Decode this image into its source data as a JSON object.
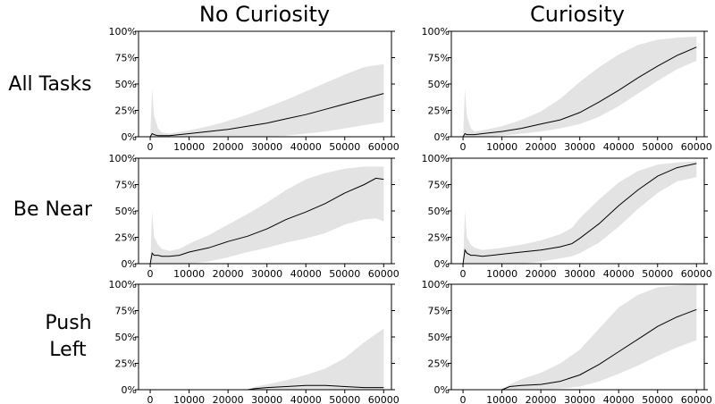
{
  "figure": {
    "column_titles": [
      "No Curiosity",
      "Curiosity"
    ],
    "row_labels": [
      [
        "All Tasks"
      ],
      [
        "Be Near"
      ],
      [
        "Push",
        "Left"
      ]
    ]
  },
  "chart_data": [
    {
      "type": "line",
      "row": 0,
      "col": 0,
      "task": "All Tasks",
      "condition": "No Curiosity",
      "xlim": [
        -3000,
        62000
      ],
      "ylim": [
        0,
        100
      ],
      "xticks": [
        0,
        10000,
        20000,
        30000,
        40000,
        50000,
        60000
      ],
      "yticks": [
        0,
        25,
        50,
        75,
        100
      ],
      "xtick_labels": [
        "0",
        "10000",
        "20000",
        "30000",
        "40000",
        "50000",
        "60000"
      ],
      "ytick_labels": [
        "0%",
        "25%",
        "50%",
        "75%",
        "100%"
      ],
      "x": [
        0,
        500,
        1000,
        2000,
        3000,
        5000,
        10000,
        15000,
        20000,
        25000,
        30000,
        35000,
        40000,
        45000,
        50000,
        55000,
        60000
      ],
      "mean": [
        0,
        3,
        2,
        1,
        1,
        1,
        3,
        5,
        7,
        10,
        13,
        17,
        21,
        26,
        31,
        36,
        41
      ],
      "lower": [
        0,
        0,
        0,
        0,
        0,
        0,
        0,
        0,
        0,
        0,
        0,
        1,
        3,
        5,
        8,
        11,
        14
      ],
      "upper": [
        0,
        46,
        20,
        8,
        4,
        3,
        6,
        10,
        15,
        21,
        28,
        35,
        43,
        51,
        59,
        66,
        69
      ]
    },
    {
      "type": "line",
      "row": 0,
      "col": 1,
      "task": "All Tasks",
      "condition": "Curiosity",
      "xlim": [
        -3000,
        62000
      ],
      "ylim": [
        0,
        100
      ],
      "xticks": [
        0,
        10000,
        20000,
        30000,
        40000,
        50000,
        60000
      ],
      "yticks": [
        0,
        25,
        50,
        75,
        100
      ],
      "xtick_labels": [
        "0",
        "10000",
        "20000",
        "30000",
        "40000",
        "50000",
        "60000"
      ],
      "ytick_labels": [
        "0%",
        "25%",
        "50%",
        "75%",
        "100%"
      ],
      "x": [
        0,
        500,
        1000,
        2000,
        3000,
        5000,
        10000,
        15000,
        20000,
        25000,
        30000,
        35000,
        40000,
        45000,
        50000,
        55000,
        60000
      ],
      "mean": [
        0,
        3,
        2,
        2,
        2,
        3,
        5,
        8,
        12,
        16,
        23,
        33,
        44,
        56,
        67,
        77,
        85
      ],
      "lower": [
        0,
        0,
        0,
        0,
        0,
        0,
        1,
        3,
        5,
        8,
        12,
        19,
        29,
        41,
        53,
        64,
        72
      ],
      "upper": [
        0,
        45,
        20,
        8,
        5,
        6,
        10,
        16,
        24,
        36,
        52,
        66,
        78,
        87,
        92,
        94,
        95
      ]
    },
    {
      "type": "line",
      "row": 1,
      "col": 0,
      "task": "Be Near",
      "condition": "No Curiosity",
      "xlim": [
        -3000,
        62000
      ],
      "ylim": [
        0,
        100
      ],
      "xticks": [
        0,
        10000,
        20000,
        30000,
        40000,
        50000,
        60000
      ],
      "yticks": [
        0,
        25,
        50,
        75,
        100
      ],
      "xtick_labels": [
        "0",
        "10000",
        "20000",
        "30000",
        "40000",
        "50000",
        "60000"
      ],
      "ytick_labels": [
        "0%",
        "25%",
        "50%",
        "75%",
        "100%"
      ],
      "x": [
        0,
        500,
        1000,
        2000,
        3000,
        5000,
        7500,
        10000,
        15000,
        20000,
        25000,
        30000,
        35000,
        40000,
        45000,
        50000,
        55000,
        58000,
        60000
      ],
      "mean": [
        0,
        10,
        8,
        8,
        7,
        7,
        8,
        11,
        15,
        21,
        26,
        33,
        42,
        49,
        57,
        67,
        75,
        81,
        80
      ],
      "lower": [
        0,
        0,
        0,
        0,
        0,
        0,
        0,
        0,
        2,
        6,
        11,
        15,
        20,
        24,
        29,
        37,
        42,
        43,
        40
      ],
      "upper": [
        0,
        50,
        25,
        18,
        14,
        12,
        14,
        19,
        27,
        37,
        47,
        58,
        70,
        80,
        86,
        90,
        92,
        92,
        92
      ]
    },
    {
      "type": "line",
      "row": 1,
      "col": 1,
      "task": "Be Near",
      "condition": "Curiosity",
      "xlim": [
        -3000,
        62000
      ],
      "ylim": [
        0,
        100
      ],
      "xticks": [
        0,
        10000,
        20000,
        30000,
        40000,
        50000,
        60000
      ],
      "yticks": [
        0,
        25,
        50,
        75,
        100
      ],
      "xtick_labels": [
        "0",
        "10000",
        "20000",
        "30000",
        "40000",
        "50000",
        "60000"
      ],
      "ytick_labels": [
        "0%",
        "25%",
        "50%",
        "75%",
        "100%"
      ],
      "x": [
        0,
        500,
        1000,
        2000,
        3000,
        5000,
        7500,
        10000,
        15000,
        20000,
        25000,
        28000,
        30000,
        35000,
        40000,
        45000,
        50000,
        55000,
        60000
      ],
      "mean": [
        0,
        13,
        10,
        8,
        8,
        7,
        8,
        9,
        11,
        13,
        16,
        19,
        24,
        38,
        55,
        70,
        83,
        91,
        95
      ],
      "lower": [
        0,
        0,
        0,
        0,
        0,
        0,
        0,
        0,
        0,
        2,
        5,
        7,
        10,
        20,
        35,
        52,
        67,
        78,
        82
      ],
      "upper": [
        0,
        50,
        25,
        18,
        15,
        13,
        14,
        15,
        18,
        22,
        28,
        34,
        43,
        61,
        77,
        88,
        94,
        96,
        97
      ]
    },
    {
      "type": "line",
      "row": 2,
      "col": 0,
      "task": "Push Left",
      "condition": "No Curiosity",
      "xlim": [
        -3000,
        62000
      ],
      "ylim": [
        0,
        100
      ],
      "xticks": [
        0,
        10000,
        20000,
        30000,
        40000,
        50000,
        60000
      ],
      "yticks": [
        0,
        25,
        50,
        75,
        100
      ],
      "xtick_labels": [
        "0",
        "10000",
        "20000",
        "30000",
        "40000",
        "50000",
        "60000"
      ],
      "ytick_labels": [
        "0%",
        "25%",
        "50%",
        "75%",
        "100%"
      ],
      "x": [
        25000,
        27000,
        30000,
        35000,
        40000,
        45000,
        50000,
        55000,
        60000
      ],
      "mean": [
        0,
        1,
        2,
        3,
        4,
        4,
        3,
        2,
        2
      ],
      "lower": [
        0,
        0,
        0,
        0,
        0,
        0,
        0,
        0,
        0
      ],
      "upper": [
        0,
        3,
        5,
        9,
        14,
        20,
        30,
        45,
        58
      ]
    },
    {
      "type": "line",
      "row": 2,
      "col": 1,
      "task": "Push Left",
      "condition": "Curiosity",
      "xlim": [
        -3000,
        62000
      ],
      "ylim": [
        0,
        100
      ],
      "xticks": [
        0,
        10000,
        20000,
        30000,
        40000,
        50000,
        60000
      ],
      "yticks": [
        0,
        25,
        50,
        75,
        100
      ],
      "xtick_labels": [
        "0",
        "10000",
        "20000",
        "30000",
        "40000",
        "50000",
        "60000"
      ],
      "ytick_labels": [
        "0%",
        "25%",
        "50%",
        "75%",
        "100%"
      ],
      "x": [
        10000,
        12000,
        15000,
        20000,
        25000,
        30000,
        35000,
        40000,
        45000,
        50000,
        55000,
        60000
      ],
      "mean": [
        0,
        3,
        4,
        5,
        8,
        14,
        24,
        36,
        48,
        60,
        69,
        76
      ],
      "lower": [
        0,
        0,
        0,
        0,
        1,
        3,
        8,
        15,
        23,
        32,
        40,
        47
      ],
      "upper": [
        0,
        5,
        10,
        16,
        25,
        38,
        58,
        78,
        90,
        97,
        99,
        100
      ]
    }
  ]
}
